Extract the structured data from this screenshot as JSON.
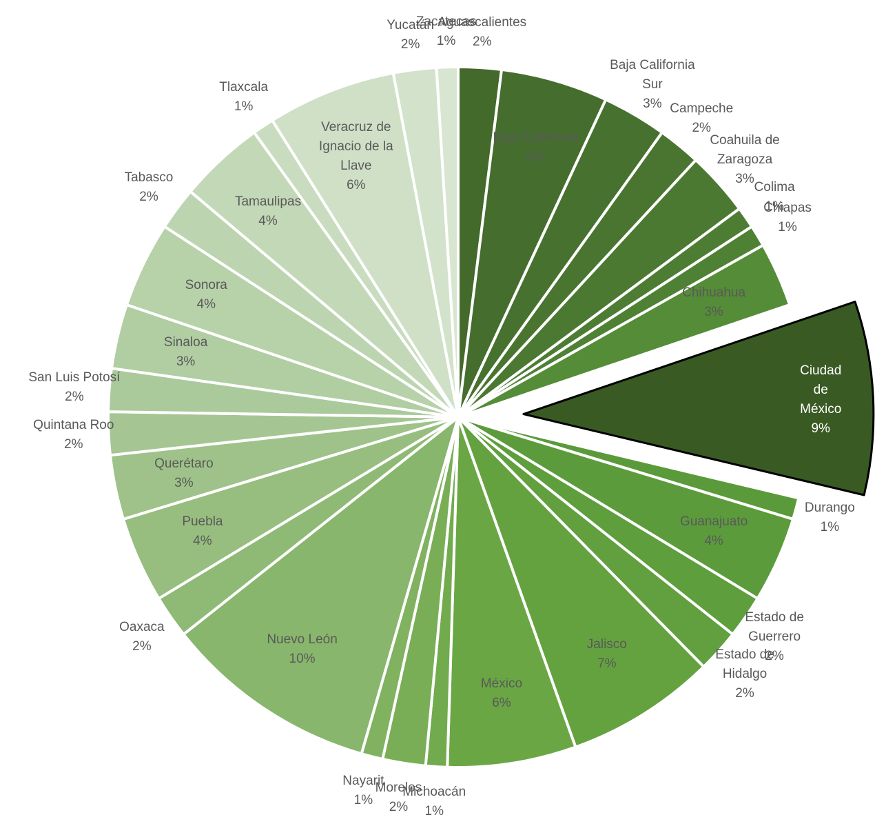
{
  "chart_data": {
    "type": "pie",
    "categories": [
      "Aguascalientes",
      "Baja California",
      "Baja California Sur",
      "Campeche",
      "Coahuila de Zaragoza",
      "Colima",
      "Chiapas",
      "Chihuahua",
      "Ciudad de México",
      "Durango",
      "Guanajuato",
      "Estado de Guerrero",
      "Estado de Hidalgo",
      "Jalisco",
      "México",
      "Michoacán",
      "Morelos",
      "Nayarit",
      "Nuevo León",
      "Oaxaca",
      "Puebla",
      "Querétaro",
      "Quintana Roo",
      "San Luis Potosí",
      "Sinaloa",
      "Sonora",
      "Tabasco",
      "Tamaulipas",
      "Tlaxcala",
      "Veracruz de Ignacio de la Llave",
      "Yucatán",
      "Zacatecas"
    ],
    "values": [
      2,
      5,
      3,
      2,
      3,
      1,
      1,
      3,
      9,
      1,
      4,
      2,
      2,
      7,
      6,
      1,
      2,
      1,
      10,
      2,
      4,
      3,
      2,
      2,
      3,
      4,
      2,
      4,
      1,
      6,
      2,
      1
    ],
    "value_labels": [
      "2%",
      "5%",
      "3%",
      "2%",
      "3%",
      "1%",
      "1%",
      "3%",
      "9%",
      "1%",
      "4%",
      "2%",
      "2%",
      "7%",
      "6%",
      "1%",
      "2%",
      "1%",
      "10%",
      "2%",
      "4%",
      "3%",
      "2%",
      "2%",
      "3%",
      "4%",
      "2%",
      "4%",
      "1%",
      "6%",
      "2%",
      "1%"
    ],
    "colors": [
      "#43692b",
      "#456d2d",
      "#47712e",
      "#497530",
      "#4b7931",
      "#4d7d33",
      "#4f8134",
      "#548c37",
      "#3a5a24",
      "#5a9a3a",
      "#5c9b3c",
      "#5e9e3d",
      "#619f3f",
      "#64a240",
      "#6aa744",
      "#72aa4e",
      "#79ae57",
      "#80b260",
      "#88b66c",
      "#8fba75",
      "#97be7f",
      "#9ec289",
      "#a5c693",
      "#abca9b",
      "#b1cda2",
      "#b7d1a9",
      "#bdd4b0",
      "#c3d8b7",
      "#c9dcbf",
      "#cfe0c7",
      "#d3e2cb",
      "#d8e6d1"
    ],
    "explode": "Ciudad de México"
  }
}
